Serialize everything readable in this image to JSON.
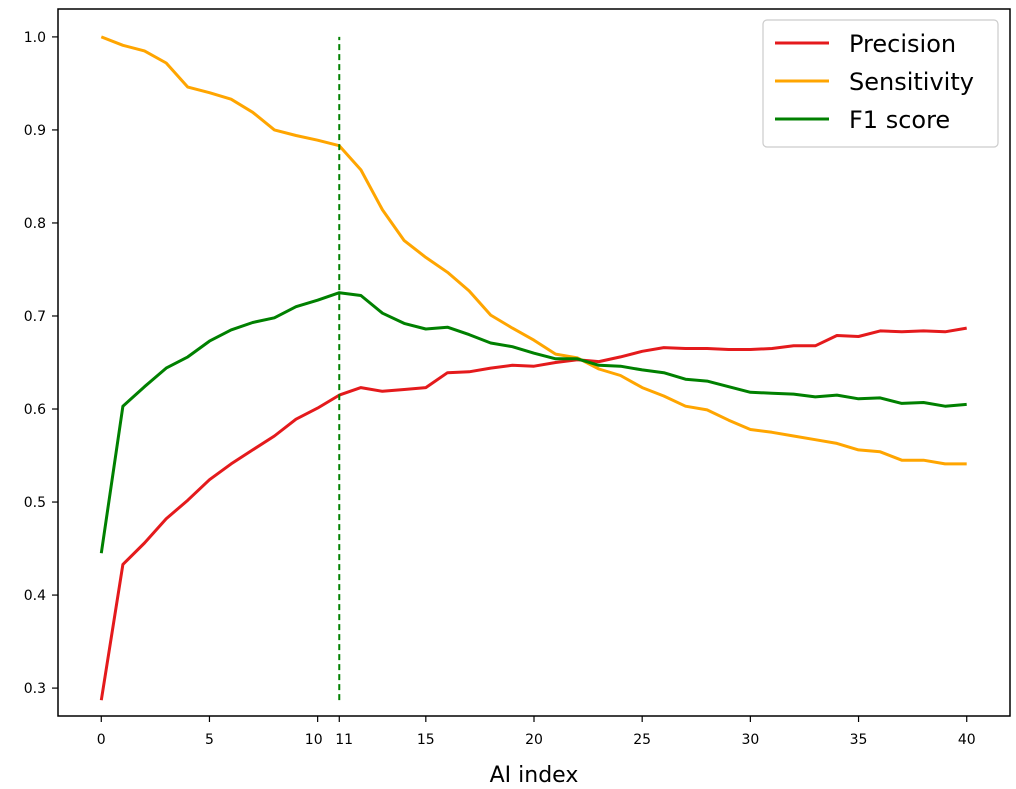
{
  "chart_data": {
    "type": "line",
    "title": "",
    "xlabel": "AI index",
    "ylabel": "",
    "xlim": [
      -2,
      42
    ],
    "ylim": [
      0.27,
      1.03
    ],
    "xticks": [
      0,
      5,
      10,
      11,
      15,
      20,
      25,
      30,
      35,
      40
    ],
    "xtick_labels": [
      "0",
      "5",
      "10",
      "11",
      "15",
      "20",
      "25",
      "30",
      "35",
      "40"
    ],
    "yticks": [
      0.3,
      0.4,
      0.5,
      0.6,
      0.7,
      0.8,
      0.9,
      1.0
    ],
    "ytick_labels": [
      "0.3",
      "0.4",
      "0.5",
      "0.6",
      "0.7",
      "0.8",
      "0.9",
      "1.0"
    ],
    "grid": false,
    "legend_position": "top-right",
    "x": [
      0,
      1,
      2,
      3,
      4,
      5,
      6,
      7,
      8,
      9,
      10,
      11,
      12,
      13,
      14,
      15,
      16,
      17,
      18,
      19,
      20,
      21,
      22,
      23,
      24,
      25,
      26,
      27,
      28,
      29,
      30,
      31,
      32,
      33,
      34,
      35,
      36,
      37,
      38,
      39,
      40
    ],
    "series": [
      {
        "name": "Precision",
        "color": "#e41a1c",
        "values": [
          0.287,
          0.433,
          0.456,
          0.482,
          0.502,
          0.524,
          0.541,
          0.556,
          0.571,
          0.589,
          0.601,
          0.615,
          0.623,
          0.619,
          0.621,
          0.623,
          0.639,
          0.64,
          0.644,
          0.647,
          0.646,
          0.65,
          0.653,
          0.651,
          0.656,
          0.662,
          0.666,
          0.665,
          0.665,
          0.664,
          0.664,
          0.665,
          0.668,
          0.668,
          0.679,
          0.678,
          0.684,
          0.683,
          0.684,
          0.683,
          0.687
        ]
      },
      {
        "name": "Sensitivity",
        "color": "#ffa500",
        "values": [
          1.0,
          0.991,
          0.985,
          0.972,
          0.946,
          0.94,
          0.933,
          0.919,
          0.9,
          0.894,
          0.889,
          0.883,
          0.857,
          0.814,
          0.781,
          0.763,
          0.747,
          0.727,
          0.701,
          0.687,
          0.674,
          0.659,
          0.655,
          0.643,
          0.636,
          0.623,
          0.614,
          0.603,
          0.599,
          0.588,
          0.578,
          0.575,
          0.571,
          0.567,
          0.563,
          0.556,
          0.554,
          0.545,
          0.545,
          0.541,
          0.541
        ]
      },
      {
        "name": "F1 score",
        "color": "#008000",
        "values": [
          0.445,
          0.603,
          0.624,
          0.644,
          0.656,
          0.673,
          0.685,
          0.693,
          0.698,
          0.71,
          0.717,
          0.725,
          0.722,
          0.703,
          0.692,
          0.686,
          0.688,
          0.68,
          0.671,
          0.667,
          0.66,
          0.654,
          0.654,
          0.647,
          0.646,
          0.642,
          0.639,
          0.632,
          0.63,
          0.624,
          0.618,
          0.617,
          0.616,
          0.613,
          0.615,
          0.611,
          0.612,
          0.606,
          0.607,
          0.603,
          0.605
        ]
      }
    ],
    "reference_line": {
      "x": 11,
      "y_range": [
        0.287,
        1.0
      ],
      "color": "#008000",
      "style": "dashed"
    }
  }
}
